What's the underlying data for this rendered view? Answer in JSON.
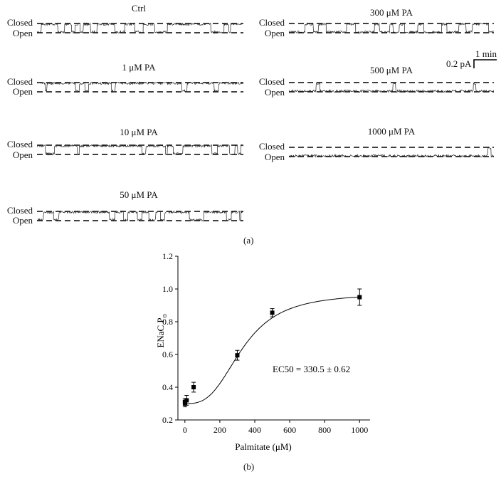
{
  "traces": {
    "closed_label": "Closed",
    "open_label": "Open",
    "items": [
      {
        "title": "Ctrl",
        "open_fraction": 0.31
      },
      {
        "title": "1 μM PA",
        "open_fraction": 0.32
      },
      {
        "title": "10 μM PA",
        "open_fraction": 0.3
      },
      {
        "title": "50 μM PA",
        "open_fraction": 0.4
      },
      {
        "title": "300 μM PA",
        "open_fraction": 0.6
      },
      {
        "title": "500 μM PA",
        "open_fraction": 0.85
      },
      {
        "title": "1000 μM PA",
        "open_fraction": 0.95
      }
    ],
    "scale_bar": {
      "current": "0.2 pA",
      "time": "1 min"
    }
  },
  "panel_a_label": "(a)",
  "panel_b_label": "(b)",
  "chart_data": {
    "type": "scatter",
    "title": "",
    "xlabel": "Palmitate (μM)",
    "ylabel": "ENaC P",
    "ylabel_sub": "o",
    "xlim": [
      -40,
      1060
    ],
    "ylim": [
      0.2,
      1.2
    ],
    "xticks": [
      0,
      200,
      400,
      600,
      800,
      1000
    ],
    "yticks": [
      0.2,
      0.4,
      0.6,
      0.8,
      1.0,
      1.2
    ],
    "ytick_labels": [
      "0.2",
      "0.4",
      "0.6",
      "0.8",
      "1.0",
      "1.2"
    ],
    "points": [
      {
        "x": 0,
        "y": 0.31,
        "err": 0.02
      },
      {
        "x": 1,
        "y": 0.3,
        "err": 0.02
      },
      {
        "x": 10,
        "y": 0.32,
        "err": 0.03
      },
      {
        "x": 50,
        "y": 0.4,
        "err": 0.03
      },
      {
        "x": 300,
        "y": 0.595,
        "err": 0.03
      },
      {
        "x": 500,
        "y": 0.855,
        "err": 0.025
      },
      {
        "x": 1000,
        "y": 0.95,
        "err": 0.05
      }
    ],
    "fit_curve": {
      "bottom": 0.3,
      "top": 0.975,
      "ec50": 330.5,
      "hill": 3.0
    },
    "annotation": "EC50 = 330.5 ± 0.62",
    "grid": false
  }
}
